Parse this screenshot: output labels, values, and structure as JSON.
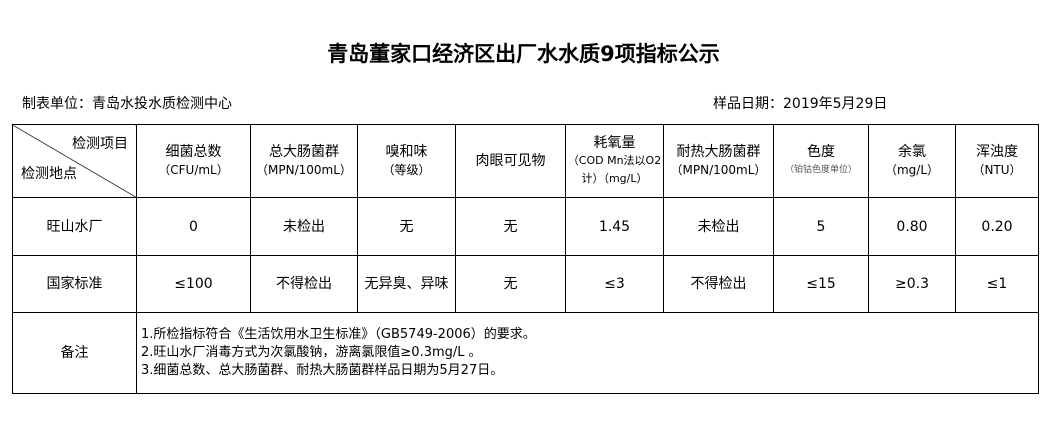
{
  "title": "青岛董家口经济区出厂水水质9项指标公示",
  "unit": "制表单位：青岛水投水质检测中心",
  "date": "样品日期：2019年5月29日",
  "header": {
    "corner_top": "检测项目",
    "corner_bottom": "检测地点",
    "cols": [
      {
        "name": "细菌总数",
        "unit": "（CFU/mL）"
      },
      {
        "name": "总大肠菌群",
        "unit": "（MPN/100mL）"
      },
      {
        "name": "嗅和味",
        "unit": "（等级）"
      },
      {
        "name": "肉眼可见物",
        "unit": ""
      },
      {
        "name": "耗氧量",
        "unit": "（COD Mn法以O2计）（mg/L）"
      },
      {
        "name": "耐热大肠菌群",
        "unit": "（MPN/100mL）"
      },
      {
        "name": "色度",
        "unit": "（铂钴色度单位）"
      },
      {
        "name": "余氯",
        "unit": "（mg/L）"
      },
      {
        "name": "浑浊度",
        "unit": "（NTU）"
      }
    ]
  },
  "rows": [
    {
      "label": "旺山水厂",
      "values": [
        "0",
        "未检出",
        "无",
        "无",
        "1.45",
        "未检出",
        "5",
        "0.80",
        "0.20"
      ]
    },
    {
      "label": "国家标准",
      "values": [
        "≤100",
        "不得检出",
        "无异臭、异味",
        "无",
        "≤3",
        "不得检出",
        "≤15",
        "≥0.3",
        "≤1"
      ]
    }
  ],
  "notes": {
    "label": "备注",
    "lines": [
      "1.所检指标符合《生活饮用水卫生标准》（GB5749-2006）的要求。",
      "2.旺山水厂消毒方式为次氯酸钠，游离氯限值≥0.3mg/L 。",
      "3.细菌总数、总大肠菌群、耐热大肠菌群样品日期为5月27日。"
    ]
  }
}
